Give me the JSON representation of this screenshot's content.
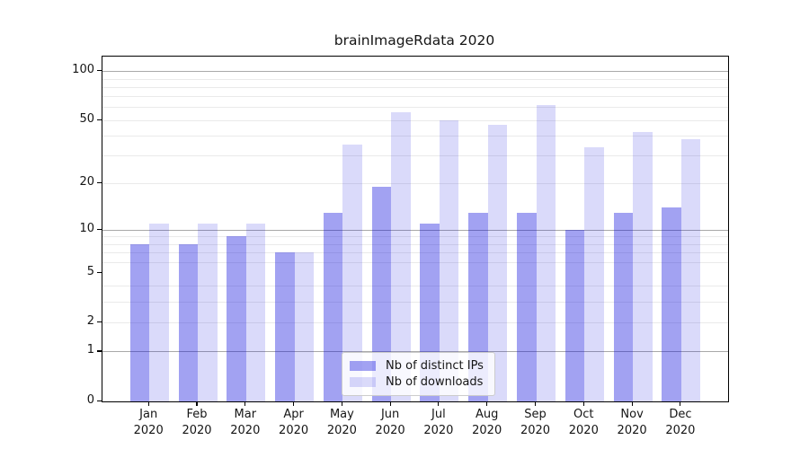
{
  "chart_data": {
    "type": "bar",
    "title": "brainImageRdata 2020",
    "categories": [
      "Jan",
      "Feb",
      "Mar",
      "Apr",
      "May",
      "Jun",
      "Jul",
      "Aug",
      "Sep",
      "Oct",
      "Nov",
      "Dec"
    ],
    "category_year": "2020",
    "series": [
      {
        "name": "Nb of distinct IPs",
        "values": [
          8,
          8,
          9,
          7,
          13,
          19,
          11,
          13,
          13,
          10,
          13,
          14
        ],
        "color": "#0a0adc",
        "alpha": 0.38,
        "rendered_hex": "#a2a2f2"
      },
      {
        "name": "Nb of downloads",
        "values": [
          11,
          11,
          11,
          7,
          35,
          56,
          50,
          47,
          62,
          34,
          42,
          38
        ],
        "color": "#0a0adc",
        "alpha": 0.15,
        "rendered_hex": "#dadafa"
      }
    ],
    "y_axis": {
      "scale": "log1p",
      "ticks": [
        0,
        1,
        2,
        5,
        10,
        20,
        50,
        100
      ],
      "range": [
        0,
        123
      ]
    },
    "x_axis": {
      "label_lines": 2
    },
    "grid": {
      "major_ticks": [
        1,
        10,
        100
      ],
      "minor_ticks": [
        2,
        3,
        4,
        6,
        7,
        8,
        9,
        20,
        30,
        40,
        50,
        60,
        70,
        80,
        90
      ],
      "major_color": "#a9a9a9",
      "minor_color": "#eaeaea"
    },
    "legend": {
      "position": "lower-center-inside"
    },
    "colors": {
      "spine": "#000000",
      "background": "#ffffff",
      "text": "#151515"
    }
  }
}
